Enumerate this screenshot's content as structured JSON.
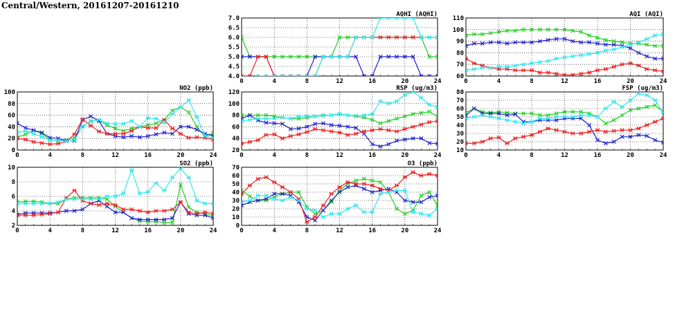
{
  "page": {
    "title": "Central/Western, 20161207-20161210"
  },
  "colors": {
    "green": "#22cc22",
    "blue": "#1f1fcc",
    "red": "#ee2222",
    "cyan": "#33e6f0"
  },
  "chart_data": [
    {
      "id": "aqhi",
      "type": "line",
      "title": "AQHI (AQHI)",
      "x": [
        0,
        1,
        2,
        3,
        4,
        5,
        6,
        7,
        8,
        9,
        10,
        11,
        12,
        13,
        14,
        15,
        16,
        17,
        18,
        19,
        20,
        21,
        22,
        23,
        24
      ],
      "xticks": [
        0,
        4,
        8,
        12,
        16,
        20,
        24
      ],
      "ylim": [
        4.0,
        7.0
      ],
      "yticks": [
        "4.0",
        "4.5",
        "5.0",
        "5.5",
        "6.0",
        "6.5",
        "7.0"
      ],
      "series": [
        {
          "color": "green",
          "marker": "x",
          "values": [
            6,
            5,
            5,
            5,
            5,
            5,
            5,
            5,
            5,
            5,
            5,
            5,
            6,
            6,
            6,
            6,
            6,
            6,
            6,
            6,
            6,
            6,
            6,
            5,
            5
          ]
        },
        {
          "color": "blue",
          "marker": "x",
          "values": [
            5,
            5,
            5,
            5,
            4,
            4,
            4,
            4,
            4,
            5,
            5,
            5,
            5,
            5,
            5,
            4,
            4,
            5,
            5,
            5,
            5,
            5,
            4,
            4,
            4
          ]
        },
        {
          "color": "red",
          "marker": "*",
          "values": [
            4,
            4,
            5,
            5,
            4,
            4,
            4,
            4,
            4,
            4,
            5,
            5,
            5,
            5,
            6,
            6,
            6,
            6,
            6,
            6,
            6,
            6,
            6,
            6,
            6
          ]
        },
        {
          "color": "cyan",
          "marker": "*",
          "values": [
            null,
            null,
            4,
            4,
            4,
            4,
            4,
            4,
            4,
            4,
            5,
            5,
            5,
            5,
            6,
            6,
            6,
            7,
            7,
            7,
            7,
            7,
            6,
            6,
            6
          ]
        }
      ]
    },
    {
      "id": "aqi",
      "type": "line",
      "title": "AQI (AQI)",
      "x": [
        0,
        1,
        2,
        3,
        4,
        5,
        6,
        7,
        8,
        9,
        10,
        11,
        12,
        13,
        14,
        15,
        16,
        17,
        18,
        19,
        20,
        21,
        22,
        23,
        24
      ],
      "xticks": [
        0,
        4,
        8,
        12,
        16,
        20,
        24
      ],
      "ylim": [
        60,
        110
      ],
      "yticks": [
        "60",
        "70",
        "80",
        "90",
        "100",
        "110"
      ],
      "series": [
        {
          "color": "green",
          "marker": "x",
          "values": [
            95,
            96,
            96,
            97,
            98,
            99,
            99,
            100,
            100,
            100,
            100,
            100,
            100,
            99,
            98,
            95,
            93,
            91,
            90,
            89,
            88,
            88,
            87,
            86,
            86
          ]
        },
        {
          "color": "blue",
          "marker": "x",
          "values": [
            86,
            88,
            88,
            89,
            89,
            88,
            89,
            89,
            89,
            90,
            91,
            92,
            92,
            90,
            89,
            89,
            88,
            87,
            87,
            86,
            84,
            80,
            77,
            75,
            75
          ]
        },
        {
          "color": "red",
          "marker": "*",
          "values": [
            75,
            71,
            69,
            67,
            66,
            66,
            65,
            65,
            65,
            63,
            63,
            62,
            61,
            61,
            62,
            63,
            65,
            66,
            68,
            70,
            71,
            69,
            66,
            65,
            64
          ]
        },
        {
          "color": "cyan",
          "marker": "*",
          "values": [
            65,
            66,
            67,
            67,
            68,
            68,
            69,
            70,
            71,
            72,
            73,
            75,
            76,
            77,
            78,
            79,
            80,
            82,
            83,
            85,
            87,
            89,
            92,
            95,
            96
          ]
        }
      ]
    },
    {
      "id": "no2",
      "type": "line",
      "title": "NO2 (ppb)",
      "x": [
        0,
        1,
        2,
        3,
        4,
        5,
        6,
        7,
        8,
        9,
        10,
        11,
        12,
        13,
        14,
        15,
        16,
        17,
        18,
        19,
        20,
        21,
        22,
        23,
        24
      ],
      "xticks": [
        0,
        4,
        8,
        12,
        16,
        20,
        24
      ],
      "ylim": [
        0,
        100
      ],
      "yticks": [
        "0",
        "20",
        "40",
        "60",
        "80",
        "100"
      ],
      "series": [
        {
          "color": "green",
          "marker": "x",
          "values": [
            22,
            27,
            34,
            28,
            18,
            16,
            17,
            21,
            40,
            50,
            51,
            43,
            37,
            33,
            37,
            40,
            43,
            46,
            52,
            68,
            74,
            65,
            40,
            23,
            30
          ]
        },
        {
          "color": "blue",
          "marker": "x",
          "values": [
            46,
            38,
            34,
            30,
            21,
            20,
            16,
            16,
            52,
            58,
            50,
            28,
            24,
            22,
            24,
            22,
            24,
            27,
            30,
            28,
            40,
            40,
            35,
            28,
            24
          ]
        },
        {
          "color": "red",
          "marker": "*",
          "values": [
            20,
            18,
            14,
            12,
            10,
            11,
            15,
            27,
            53,
            42,
            32,
            28,
            28,
            28,
            33,
            40,
            38,
            38,
            52,
            37,
            28,
            21,
            22,
            21,
            18
          ]
        },
        {
          "color": "cyan",
          "marker": "*",
          "values": [
            30,
            33,
            28,
            23,
            17,
            17,
            15,
            17,
            41,
            49,
            52,
            46,
            45,
            45,
            50,
            40,
            55,
            54,
            47,
            62,
            74,
            86,
            57,
            24,
            21
          ]
        }
      ]
    },
    {
      "id": "rsp",
      "type": "line",
      "title": "RSP (ug/m3)",
      "x": [
        0,
        1,
        2,
        3,
        4,
        5,
        6,
        7,
        8,
        9,
        10,
        11,
        12,
        13,
        14,
        15,
        16,
        17,
        18,
        19,
        20,
        21,
        22,
        23,
        24
      ],
      "xticks": [
        0,
        4,
        8,
        12,
        16,
        20,
        24
      ],
      "ylim": [
        20,
        120
      ],
      "yticks": [
        "20",
        "40",
        "60",
        "80",
        "100",
        "120"
      ],
      "series": [
        {
          "color": "green",
          "marker": "x",
          "values": [
            80,
            80,
            80,
            80,
            78,
            76,
            74,
            74,
            76,
            78,
            80,
            80,
            82,
            80,
            78,
            76,
            72,
            66,
            70,
            74,
            78,
            82,
            84,
            86,
            78
          ]
        },
        {
          "color": "blue",
          "marker": "x",
          "values": [
            74,
            80,
            71,
            67,
            66,
            65,
            56,
            57,
            60,
            65,
            66,
            63,
            62,
            60,
            58,
            48,
            30,
            26,
            30,
            36,
            38,
            40,
            40,
            32,
            31
          ]
        },
        {
          "color": "red",
          "marker": "*",
          "values": [
            31,
            34,
            37,
            46,
            47,
            40,
            44,
            47,
            51,
            56,
            54,
            52,
            50,
            46,
            48,
            52,
            54,
            56,
            54,
            52,
            56,
            60,
            64,
            68,
            70
          ]
        },
        {
          "color": "cyan",
          "marker": "*",
          "values": [
            70,
            72,
            74,
            74,
            75,
            76,
            74,
            78,
            78,
            78,
            79,
            80,
            82,
            80,
            79,
            80,
            82,
            104,
            100,
            104,
            115,
            120,
            110,
            98,
            94
          ]
        }
      ]
    },
    {
      "id": "fsp",
      "type": "line",
      "title": "FSP (ug/m3)",
      "x": [
        0,
        1,
        2,
        3,
        4,
        5,
        6,
        7,
        8,
        9,
        10,
        11,
        12,
        13,
        14,
        15,
        16,
        17,
        18,
        19,
        20,
        21,
        22,
        23,
        24
      ],
      "xticks": [
        0,
        4,
        8,
        12,
        16,
        20,
        24
      ],
      "ylim": [
        10,
        80
      ],
      "yticks": [
        "10",
        "20",
        "30",
        "40",
        "50",
        "60",
        "70",
        "80"
      ],
      "series": [
        {
          "color": "green",
          "marker": "x",
          "values": [
            55,
            60,
            56,
            55,
            56,
            55,
            54,
            54,
            54,
            52,
            52,
            54,
            56,
            56,
            56,
            54,
            50,
            42,
            46,
            52,
            58,
            60,
            62,
            64,
            56
          ]
        },
        {
          "color": "blue",
          "marker": "x",
          "values": [
            52,
            60,
            54,
            54,
            54,
            52,
            53,
            44,
            44,
            46,
            46,
            46,
            48,
            48,
            48,
            40,
            22,
            18,
            20,
            26,
            26,
            28,
            27,
            22,
            19
          ]
        },
        {
          "color": "red",
          "marker": "*",
          "values": [
            18,
            18,
            20,
            24,
            25,
            18,
            24,
            26,
            28,
            32,
            36,
            34,
            32,
            30,
            30,
            32,
            34,
            32,
            33,
            34,
            34,
            36,
            40,
            44,
            48
          ]
        },
        {
          "color": "cyan",
          "marker": "*",
          "values": [
            48,
            50,
            52,
            50,
            48,
            46,
            44,
            42,
            44,
            48,
            48,
            50,
            50,
            50,
            52,
            52,
            50,
            60,
            68,
            62,
            70,
            78,
            76,
            70,
            55
          ]
        }
      ]
    },
    {
      "id": "so2",
      "type": "line",
      "title": "SO2 (ppb)",
      "x": [
        0,
        1,
        2,
        3,
        4,
        5,
        6,
        7,
        8,
        9,
        10,
        11,
        12,
        13,
        14,
        15,
        16,
        17,
        18,
        19,
        20,
        21,
        22,
        23,
        24
      ],
      "xticks": [
        0,
        4,
        8,
        12,
        16,
        20,
        24
      ],
      "ylim": [
        2,
        10
      ],
      "yticks": [
        "2",
        "4",
        "6",
        "8",
        "10"
      ],
      "series": [
        {
          "color": "green",
          "marker": "x",
          "values": [
            5.2,
            5.3,
            5.3,
            5.2,
            5.0,
            5.0,
            5.6,
            5.8,
            5.8,
            5.8,
            5.8,
            5.6,
            4.6,
            3.8,
            3.0,
            2.6,
            2.5,
            2.5,
            2.4,
            2.4,
            7.6,
            4.5,
            3.8,
            3.6,
            3.3
          ]
        },
        {
          "color": "blue",
          "marker": "x",
          "values": [
            3.5,
            3.7,
            3.7,
            3.7,
            3.7,
            3.8,
            4.0,
            4.0,
            4.2,
            5.0,
            5.4,
            4.6,
            3.8,
            3.8,
            3.0,
            2.8,
            2.8,
            2.8,
            2.8,
            3.0,
            5.2,
            3.6,
            3.4,
            3.4,
            3.0
          ]
        },
        {
          "color": "red",
          "marker": "*",
          "values": [
            3.4,
            3.4,
            3.4,
            3.5,
            3.6,
            3.8,
            5.8,
            6.8,
            5.4,
            5.0,
            4.8,
            5.0,
            4.8,
            4.2,
            4.2,
            4.0,
            3.8,
            4.0,
            4.0,
            4.2,
            5.2,
            3.8,
            3.6,
            3.8,
            3.6
          ]
        },
        {
          "color": "cyan",
          "marker": "*",
          "values": [
            5.0,
            5.0,
            5.0,
            5.0,
            5.0,
            5.2,
            5.6,
            5.6,
            5.6,
            5.6,
            5.6,
            6.0,
            6.0,
            6.4,
            9.6,
            6.4,
            6.6,
            7.8,
            6.8,
            8.6,
            9.8,
            8.6,
            5.4,
            5.0,
            5.0
          ]
        }
      ]
    },
    {
      "id": "o3",
      "type": "line",
      "title": "O3 (ppb)",
      "x": [
        0,
        1,
        2,
        3,
        4,
        5,
        6,
        7,
        8,
        9,
        10,
        11,
        12,
        13,
        14,
        15,
        16,
        17,
        18,
        19,
        20,
        21,
        22,
        23,
        24
      ],
      "xticks": [
        0,
        4,
        8,
        12,
        16,
        20,
        24
      ],
      "ylim": [
        0,
        70
      ],
      "yticks": [
        "0",
        "10",
        "20",
        "30",
        "40",
        "50",
        "60",
        "70"
      ],
      "series": [
        {
          "color": "green",
          "marker": "x",
          "values": [
            42,
            35,
            30,
            30,
            34,
            38,
            40,
            40,
            22,
            14,
            18,
            28,
            42,
            50,
            54,
            56,
            54,
            52,
            40,
            20,
            14,
            18,
            36,
            40,
            24
          ]
        },
        {
          "color": "blue",
          "marker": "x",
          "values": [
            24,
            28,
            30,
            32,
            38,
            38,
            36,
            28,
            10,
            6,
            18,
            30,
            40,
            46,
            48,
            44,
            40,
            42,
            44,
            40,
            30,
            28,
            28,
            34,
            36
          ]
        },
        {
          "color": "red",
          "marker": "*",
          "values": [
            38,
            48,
            56,
            58,
            52,
            46,
            40,
            32,
            4,
            10,
            24,
            38,
            46,
            52,
            50,
            50,
            48,
            44,
            42,
            48,
            58,
            64,
            60,
            62,
            60
          ]
        },
        {
          "color": "cyan",
          "marker": "*",
          "values": [
            28,
            30,
            36,
            36,
            32,
            30,
            34,
            30,
            20,
            18,
            10,
            14,
            14,
            20,
            24,
            16,
            16,
            38,
            40,
            42,
            42,
            16,
            14,
            12,
            20
          ]
        }
      ]
    }
  ]
}
